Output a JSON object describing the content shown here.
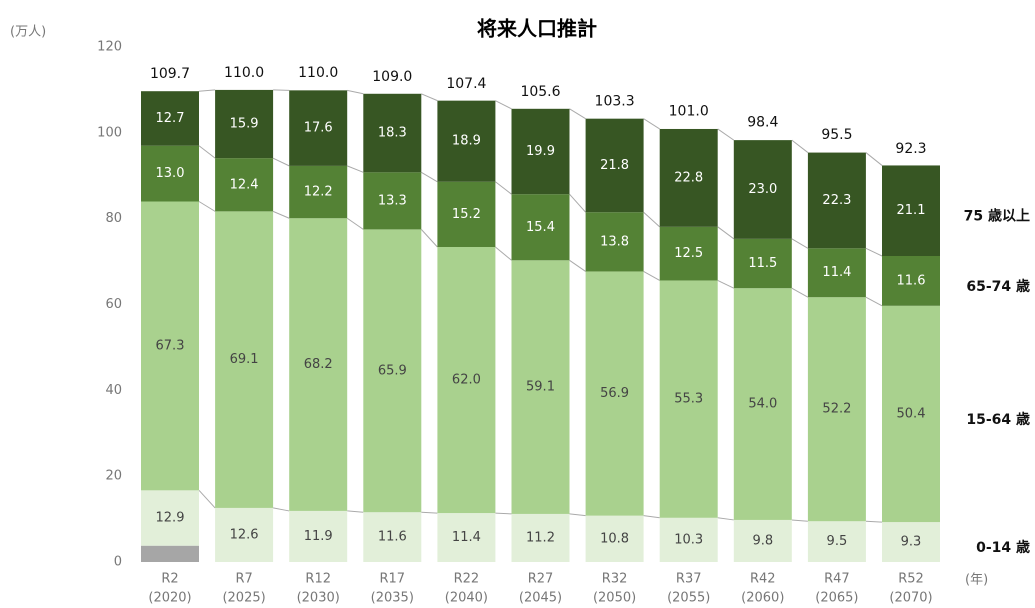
{
  "chart_data": {
    "type": "stacked_bar",
    "title": "将来人口推計",
    "y_unit": "(万人)",
    "x_unit": "(年)",
    "categories": [
      "R2",
      "R7",
      "R12",
      "R17",
      "R22",
      "R27",
      "R32",
      "R37",
      "R42",
      "R47",
      "R52"
    ],
    "sub_categories": [
      "(2020)",
      "(2025)",
      "(2030)",
      "(2035)",
      "(2040)",
      "(2045)",
      "(2050)",
      "(2055)",
      "(2060)",
      "(2065)",
      "(2070)"
    ],
    "ylim": [
      0,
      120
    ],
    "yticks": [
      0,
      20,
      40,
      60,
      80,
      100,
      120
    ],
    "grid": false,
    "series": [
      {
        "color": "#a6a6a6",
        "values": [
          3.8,
          null,
          null,
          null,
          null,
          null,
          null,
          null,
          null,
          null,
          null
        ]
      },
      {
        "name": "0-14 歳",
        "color": "#e2efd9",
        "values": [
          12.9,
          12.6,
          11.9,
          11.6,
          11.4,
          11.2,
          10.8,
          10.3,
          9.8,
          9.5,
          9.3
        ]
      },
      {
        "name": "15-64 歳",
        "color": "#a9d18e",
        "values": [
          67.3,
          69.1,
          68.2,
          65.9,
          62.0,
          59.1,
          56.9,
          55.3,
          54.0,
          52.2,
          50.4
        ],
        "value_labels": [
          "67.3",
          "69.1",
          "68.2",
          "65.9",
          "62.0",
          "59.1",
          "56.9",
          "55.3",
          "54.0",
          "52.2",
          "50.4"
        ]
      },
      {
        "name": "65-74 歳",
        "color": "#548235",
        "values": [
          13.0,
          12.4,
          12.2,
          13.3,
          15.2,
          15.4,
          13.8,
          12.5,
          11.5,
          11.4,
          11.6
        ],
        "value_labels": [
          "13.0",
          "12.4",
          "12.2",
          "13.3",
          "15.2",
          "15.4",
          "13.8",
          "12.5",
          "11.5",
          "11.4",
          "11.6"
        ]
      },
      {
        "name": "75 歳以上",
        "color": "#375623",
        "values": [
          12.7,
          15.9,
          17.6,
          18.3,
          18.9,
          19.9,
          21.8,
          22.8,
          23.0,
          22.3,
          21.1
        ],
        "value_labels": [
          "12.7",
          "15.9",
          "17.6",
          "18.3",
          "18.9",
          "19.9",
          "21.8",
          "22.8",
          "23.0",
          "22.3",
          "21.1"
        ]
      }
    ],
    "totals": [
      109.7,
      110.0,
      110.0,
      109.0,
      107.4,
      105.6,
      103.3,
      101.0,
      98.4,
      95.5,
      92.3
    ],
    "total_labels": [
      "109.7",
      "110.0",
      "110.0",
      "109.0",
      "107.4",
      "105.6",
      "103.3",
      "101.0",
      "98.4",
      "95.5",
      "92.3"
    ]
  }
}
